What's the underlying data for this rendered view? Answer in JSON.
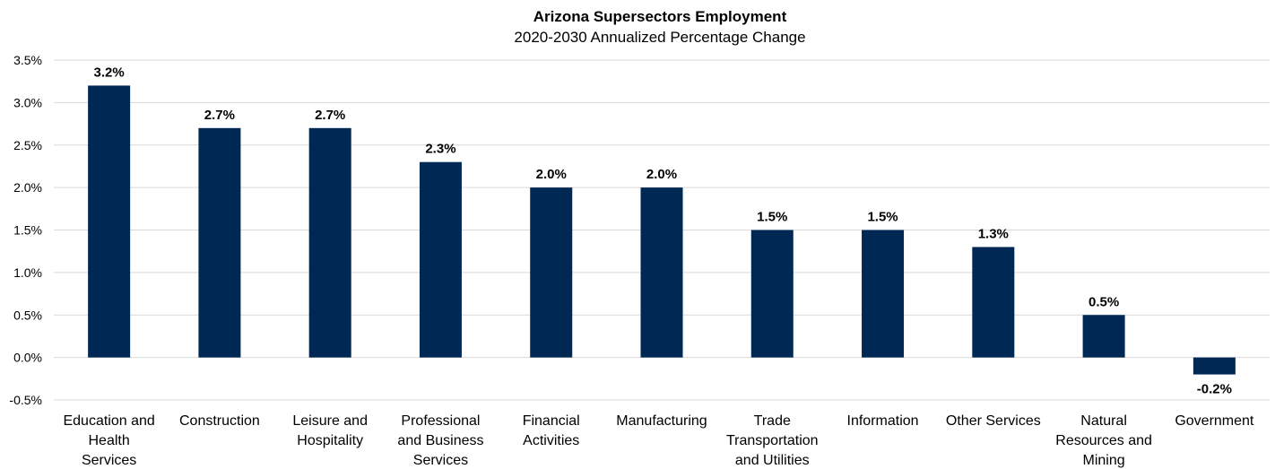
{
  "chart_data": {
    "type": "bar",
    "title": "Arizona Supersectors Employment",
    "subtitle": "2020-2030 Annualized  Percentage Change",
    "categories": [
      [
        "Education and",
        "Health",
        "Services"
      ],
      [
        "Construction"
      ],
      [
        "Leisure and",
        "Hospitality"
      ],
      [
        "Professional",
        "and Business",
        "Services"
      ],
      [
        "Financial",
        "Activities"
      ],
      [
        "Manufacturing"
      ],
      [
        "Trade",
        "Transportation",
        "and Utilities"
      ],
      [
        "Information"
      ],
      [
        "Other Services"
      ],
      [
        "Natural",
        "Resources and",
        "Mining"
      ],
      [
        "Government"
      ]
    ],
    "values": [
      3.2,
      2.7,
      2.7,
      2.3,
      2.0,
      2.0,
      1.5,
      1.5,
      1.3,
      0.5,
      -0.2
    ],
    "data_labels": [
      "3.2%",
      "2.7%",
      "2.7%",
      "2.3%",
      "2.0%",
      "2.0%",
      "1.5%",
      "1.5%",
      "1.3%",
      "0.5%",
      "-0.2%"
    ],
    "ylim": [
      -0.5,
      3.5
    ],
    "yticks": [
      3.5,
      3.0,
      2.5,
      2.0,
      1.5,
      1.0,
      0.5,
      0.0,
      -0.5
    ],
    "ytick_labels": [
      "3.5%",
      "3.0%",
      "2.5%",
      "2.0%",
      "1.5%",
      "1.0%",
      "0.5%",
      "0.0%",
      "-0.5%"
    ],
    "grid": true,
    "legend": "none",
    "bar_color": "#002855"
  }
}
